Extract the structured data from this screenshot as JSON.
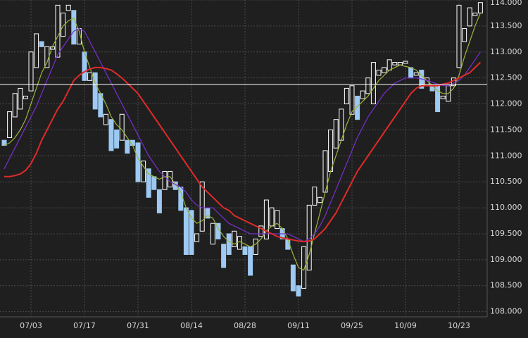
{
  "chart_data": {
    "type": "candlestick",
    "categories": [
      null,
      null,
      null,
      null,
      null,
      "07/03",
      null,
      null,
      null,
      null,
      null,
      null,
      null,
      null,
      null,
      "07/17",
      null,
      null,
      null,
      null,
      null,
      null,
      null,
      null,
      null,
      "07/31",
      null,
      null,
      null,
      null,
      null,
      null,
      null,
      null,
      null,
      "08/14",
      null,
      null,
      null,
      null,
      null,
      null,
      null,
      null,
      null,
      "08/28",
      null,
      null,
      null,
      null,
      null,
      null,
      null,
      null,
      null,
      "09/11",
      null,
      null,
      null,
      null,
      null,
      null,
      null,
      null,
      null,
      "09/25",
      null,
      null,
      null,
      null,
      null,
      null,
      null,
      null,
      null,
      "10/09",
      null,
      null,
      null,
      null,
      null,
      null,
      null,
      null,
      null,
      "10/23",
      null,
      null,
      null,
      null
    ],
    "open": [
      111.3,
      111.35,
      111.75,
      111.9,
      112.1,
      112.25,
      112.7,
      113.2,
      112.7,
      113.05,
      112.9,
      113.3,
      113.8,
      113.8,
      113.15,
      113.0,
      112.45,
      112.6,
      112.2,
      111.6,
      111.7,
      111.5,
      111.3,
      111.3,
      111.3,
      111.25,
      110.5,
      110.75,
      110.6,
      110.35,
      110.35,
      110.4,
      110.5,
      110.4,
      110.0,
      109.95,
      109.35,
      109.55,
      110.0,
      109.3,
      109.7,
      109.3,
      109.5,
      109.25,
      109.2,
      109.25,
      109.25,
      109.1,
      109.45,
      109.4,
      109.65,
      109.6,
      109.6,
      109.4,
      108.9,
      108.5,
      108.45,
      108.8,
      110.05,
      110.1,
      110.3,
      110.7,
      111.15,
      111.3,
      112.0,
      111.8,
      112.15,
      112.1,
      112.2,
      112.0,
      112.55,
      112.6,
      112.65,
      112.75,
      112.75,
      112.78,
      112.7,
      112.55,
      112.65,
      112.35,
      112.35,
      112.35,
      112.1,
      112.05,
      112.35,
      112.7,
      113.2,
      113.5,
      113.7,
      113.75
    ],
    "close": [
      111.2,
      111.85,
      112.2,
      112.3,
      112.15,
      113.0,
      113.35,
      113.1,
      113.1,
      113.1,
      113.9,
      113.75,
      113.9,
      113.15,
      113.45,
      112.45,
      112.6,
      111.9,
      111.75,
      111.8,
      111.1,
      111.15,
      111.8,
      111.05,
      111.2,
      110.5,
      110.9,
      110.2,
      110.35,
      109.9,
      110.7,
      110.7,
      110.35,
      109.95,
      109.1,
      109.1,
      109.5,
      110.5,
      109.8,
      109.7,
      109.4,
      108.85,
      109.1,
      109.55,
      109.45,
      109.1,
      108.7,
      109.4,
      109.65,
      110.15,
      110.0,
      109.95,
      109.4,
      109.2,
      108.4,
      108.3,
      109.25,
      110.05,
      110.4,
      110.2,
      111.1,
      111.5,
      111.7,
      111.9,
      112.3,
      112.35,
      111.7,
      112.25,
      112.5,
      112.8,
      112.65,
      112.7,
      112.85,
      112.8,
      112.8,
      112.82,
      112.5,
      112.6,
      112.3,
      112.5,
      112.25,
      111.85,
      112.15,
      112.35,
      112.5,
      113.9,
      113.45,
      113.85,
      113.75,
      113.95
    ],
    "up_color": "#ffffff",
    "down_color": "#9dc9f2",
    "moving_averages": [
      {
        "color": "#9bb53a",
        "values": [
          111.2,
          111.25,
          111.35,
          111.5,
          111.7,
          112.0,
          112.3,
          112.6,
          112.8,
          113.1,
          113.3,
          113.5,
          113.6,
          113.65,
          113.4,
          113.0,
          112.7,
          112.4,
          112.2,
          112.0,
          111.75,
          111.6,
          111.5,
          111.35,
          111.2,
          110.95,
          110.8,
          110.65,
          110.6,
          110.55,
          110.6,
          110.6,
          110.45,
          110.3,
          110.0,
          109.8,
          109.7,
          109.75,
          109.85,
          109.8,
          109.6,
          109.45,
          109.35,
          109.3,
          109.35,
          109.3,
          109.25,
          109.3,
          109.4,
          109.55,
          109.65,
          109.7,
          109.6,
          109.4,
          109.1,
          108.85,
          108.8,
          109.1,
          109.5,
          109.9,
          110.3,
          110.7,
          111.0,
          111.3,
          111.6,
          111.85,
          111.95,
          112.05,
          112.15,
          112.3,
          112.45,
          112.55,
          112.65,
          112.7,
          112.75,
          112.72,
          112.7,
          112.65,
          112.55,
          112.45,
          112.35,
          112.25,
          112.2,
          112.2,
          112.3,
          112.55,
          112.9,
          113.2,
          113.5,
          113.75
        ]
      },
      {
        "color": "#7a2fd0",
        "values": [
          110.75,
          110.95,
          111.15,
          111.35,
          111.55,
          111.75,
          111.95,
          112.2,
          112.45,
          112.7,
          112.95,
          113.1,
          113.25,
          113.4,
          113.45,
          113.4,
          113.2,
          113.0,
          112.8,
          112.6,
          112.4,
          112.2,
          112.0,
          111.8,
          111.6,
          111.4,
          111.2,
          111.0,
          110.85,
          110.7,
          110.6,
          110.5,
          110.45,
          110.4,
          110.3,
          110.15,
          110.05,
          110.0,
          110.0,
          110.0,
          109.9,
          109.8,
          109.7,
          109.65,
          109.6,
          109.55,
          109.5,
          109.5,
          109.5,
          109.5,
          109.5,
          109.5,
          109.5,
          109.5,
          109.45,
          109.4,
          109.35,
          109.4,
          109.5,
          109.65,
          109.85,
          110.1,
          110.35,
          110.6,
          110.85,
          111.1,
          111.35,
          111.55,
          111.75,
          111.9,
          112.05,
          112.2,
          112.3,
          112.4,
          112.45,
          112.5,
          112.5,
          112.5,
          112.48,
          112.45,
          112.42,
          112.38,
          112.35,
          112.35,
          112.4,
          112.45,
          112.55,
          112.7,
          112.85,
          113.0
        ]
      },
      {
        "color": "#e02a2a",
        "values": [
          110.6,
          110.6,
          110.62,
          110.65,
          110.72,
          110.85,
          111.05,
          111.3,
          111.5,
          111.7,
          111.9,
          112.05,
          112.25,
          112.45,
          112.55,
          112.62,
          112.67,
          112.7,
          112.7,
          112.68,
          112.65,
          112.58,
          112.5,
          112.4,
          112.3,
          112.2,
          112.05,
          111.9,
          111.75,
          111.6,
          111.45,
          111.3,
          111.15,
          111.0,
          110.85,
          110.7,
          110.55,
          110.4,
          110.3,
          110.2,
          110.1,
          110.0,
          109.95,
          109.85,
          109.8,
          109.75,
          109.7,
          109.65,
          109.6,
          109.55,
          109.5,
          109.45,
          109.42,
          109.4,
          109.38,
          109.36,
          109.35,
          109.36,
          109.4,
          109.5,
          109.6,
          109.75,
          109.9,
          110.1,
          110.3,
          110.5,
          110.7,
          110.85,
          111.0,
          111.15,
          111.3,
          111.45,
          111.6,
          111.75,
          111.9,
          112.05,
          112.2,
          112.3,
          112.35,
          112.35,
          112.35,
          112.35,
          112.38,
          112.4,
          112.45,
          112.5,
          112.55,
          112.6,
          112.7,
          112.8
        ]
      }
    ],
    "reference_line": {
      "value": 112.375,
      "color": "#ffffff"
    },
    "ylim": [
      107.9,
      114.0
    ],
    "yticks": [
      {
        "value": 108.0,
        "label": "108.000"
      },
      {
        "value": 108.5,
        "label": "108.500"
      },
      {
        "value": 109.0,
        "label": "109.000"
      },
      {
        "value": 109.5,
        "label": "109.500"
      },
      {
        "value": 110.0,
        "label": "110.000"
      },
      {
        "value": 110.5,
        "label": "110.500"
      },
      {
        "value": 111.0,
        "label": "111.000"
      },
      {
        "value": 111.5,
        "label": "111.500"
      },
      {
        "value": 112.0,
        "label": "112.000"
      },
      {
        "value": 112.5,
        "label": "112.500"
      },
      {
        "value": 113.0,
        "label": "113.000"
      },
      {
        "value": 113.5,
        "label": "113.500"
      },
      {
        "value": 114.0,
        "label": "114.000"
      }
    ],
    "grid": true
  }
}
